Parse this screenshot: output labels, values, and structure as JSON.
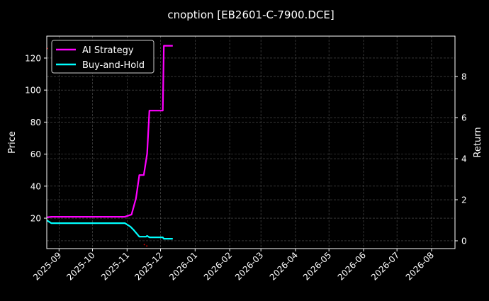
{
  "chart_data": {
    "type": "line",
    "title": "cnoption [EB2601-C-7900.DCE]",
    "xlabel": "",
    "ylabel_left": "Price",
    "ylabel_right": "Return",
    "xlim": [
      "2025-08-21",
      "2026-08-22"
    ],
    "ylim_left": [
      1.0,
      133.7
    ],
    "ylim_right": [
      -0.38,
      9.97
    ],
    "x_ticks": [
      "2025-09",
      "2025-10",
      "2025-11",
      "2025-12",
      "2026-01",
      "2026-02",
      "2026-03",
      "2026-04",
      "2026-05",
      "2026-06",
      "2026-07",
      "2026-08"
    ],
    "y_ticks_left": [
      20,
      40,
      60,
      80,
      100,
      120
    ],
    "y_ticks_right": [
      0,
      2,
      4,
      6,
      8
    ],
    "grid": true,
    "legend_position": "top-left",
    "background": "#000000",
    "series": [
      {
        "name": "AI Strategy",
        "axis": "right",
        "color": "#ff00ff",
        "style": "solid",
        "points": [
          [
            "2025-08-21",
            1.14
          ],
          [
            "2025-08-25",
            1.17
          ],
          [
            "2025-10-30",
            1.17
          ],
          [
            "2025-11-05",
            1.28
          ],
          [
            "2025-11-09",
            2.07
          ],
          [
            "2025-11-12",
            3.2
          ],
          [
            "2025-11-16",
            3.2
          ],
          [
            "2025-11-19",
            4.24
          ],
          [
            "2025-11-21",
            6.34
          ],
          [
            "2025-12-03",
            6.34
          ],
          [
            "2025-12-04",
            9.5
          ],
          [
            "2025-12-12",
            9.5
          ]
        ]
      },
      {
        "name": "Buy-and-Hold",
        "axis": "right",
        "color": "#00ffff",
        "style": "solid",
        "points": [
          [
            "2025-08-21",
            1.0
          ],
          [
            "2025-08-25",
            0.86
          ],
          [
            "2025-10-30",
            0.86
          ],
          [
            "2025-11-04",
            0.69
          ],
          [
            "2025-11-07",
            0.52
          ],
          [
            "2025-11-12",
            0.2
          ],
          [
            "2025-11-18",
            0.2
          ],
          [
            "2025-11-19",
            0.24
          ],
          [
            "2025-11-21",
            0.17
          ],
          [
            "2025-12-03",
            0.17
          ],
          [
            "2025-12-04",
            0.1
          ],
          [
            "2025-12-12",
            0.1
          ]
        ]
      },
      {
        "axis": "left",
        "color": "#ff0000",
        "style": "dotted",
        "segments": [
          [
            [
              "2025-08-21",
              126
            ],
            [
              "2025-08-23",
              126
            ]
          ],
          [
            [
              "2025-11-16",
              3.6
            ],
            [
              "2025-11-18",
              3.0
            ],
            [
              "2025-11-20",
              2.0
            ]
          ]
        ]
      }
    ]
  }
}
